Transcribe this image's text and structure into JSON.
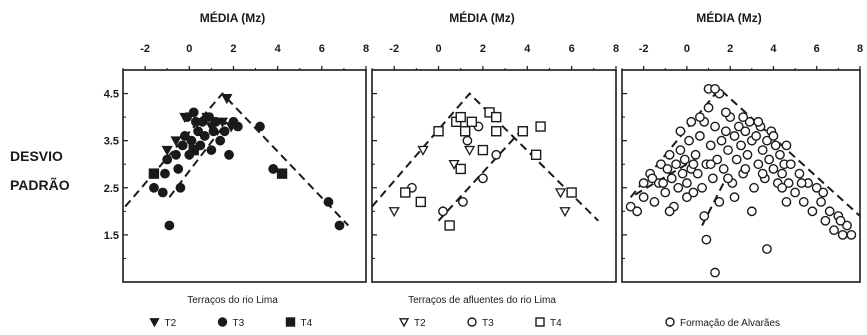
{
  "ylabel_lines": [
    "DESVIO",
    "PADRÃO"
  ],
  "chart_data": [
    {
      "type": "scatter",
      "panel": "left",
      "xlabel": "MÉDIA (Mz)",
      "xlim": [
        -3,
        8
      ],
      "xticks": [
        -2,
        0,
        2,
        4,
        6,
        8
      ],
      "ylim": [
        0.5,
        5.0
      ],
      "yticks": [
        1.5,
        2.5,
        3.5,
        4.5
      ],
      "ytick_labels": [
        "1.5",
        "2.5",
        "3.5",
        "4.5"
      ],
      "envelope": [
        [
          [
            -2.9,
            2.1
          ],
          [
            1.5,
            4.5
          ],
          [
            7.2,
            1.7
          ]
        ],
        [
          [
            -0.9,
            2.3
          ],
          [
            1.7,
            3.9
          ]
        ]
      ],
      "legend_title": "Terraços do rio Lima",
      "series": [
        {
          "name": "T2",
          "marker": "triangle-down",
          "filled": true,
          "points": [
            [
              -1.0,
              3.3
            ],
            [
              -0.6,
              3.5
            ],
            [
              -0.2,
              4.0
            ],
            [
              0.8,
              4.0
            ],
            [
              1.0,
              3.8
            ],
            [
              1.5,
              3.9
            ],
            [
              1.7,
              4.4
            ],
            [
              1.9,
              3.8
            ],
            [
              0.3,
              3.3
            ]
          ]
        },
        {
          "name": "T3",
          "marker": "circle",
          "filled": true,
          "points": [
            [
              -1.6,
              2.5
            ],
            [
              -1.2,
              2.4
            ],
            [
              -1.1,
              2.8
            ],
            [
              -1.0,
              3.1
            ],
            [
              -0.9,
              1.7
            ],
            [
              -0.6,
              3.2
            ],
            [
              -0.5,
              2.9
            ],
            [
              -0.4,
              2.5
            ],
            [
              -0.3,
              3.4
            ],
            [
              -0.2,
              3.6
            ],
            [
              -0.1,
              4.0
            ],
            [
              0.0,
              3.2
            ],
            [
              0.1,
              3.5
            ],
            [
              0.2,
              4.1
            ],
            [
              0.3,
              3.9
            ],
            [
              0.4,
              3.7
            ],
            [
              0.5,
              3.4
            ],
            [
              0.6,
              3.9
            ],
            [
              0.7,
              3.6
            ],
            [
              0.9,
              4.0
            ],
            [
              1.0,
              3.3
            ],
            [
              1.1,
              3.7
            ],
            [
              1.2,
              3.9
            ],
            [
              1.4,
              3.5
            ],
            [
              1.6,
              3.7
            ],
            [
              1.8,
              3.2
            ],
            [
              2.0,
              3.9
            ],
            [
              2.2,
              3.8
            ],
            [
              3.2,
              3.8
            ],
            [
              3.8,
              2.9
            ],
            [
              4.2,
              2.8
            ],
            [
              6.3,
              2.2
            ],
            [
              6.8,
              1.7
            ]
          ]
        },
        {
          "name": "T4",
          "marker": "square",
          "filled": true,
          "points": [
            [
              -1.6,
              2.8
            ],
            [
              0.2,
              3.3
            ],
            [
              4.2,
              2.8
            ]
          ]
        }
      ]
    },
    {
      "type": "scatter",
      "panel": "middle",
      "xlabel": "MÉDIA (Mz)",
      "xlim": [
        -3,
        8
      ],
      "xticks": [
        -2,
        0,
        2,
        4,
        6,
        8
      ],
      "ylim": [
        0.5,
        5.0
      ],
      "yticks": [
        1.5,
        2.5,
        3.5,
        4.5
      ],
      "envelope": [
        [
          [
            -3.0,
            2.1
          ],
          [
            1.4,
            4.5
          ],
          [
            7.2,
            1.8
          ]
        ],
        [
          [
            0.0,
            1.8
          ],
          [
            3.7,
            3.7
          ]
        ]
      ],
      "legend_title": "Terraços de afluentes do rio Lima",
      "series": [
        {
          "name": "T2",
          "marker": "triangle-down",
          "filled": false,
          "points": [
            [
              -2.0,
              2.0
            ],
            [
              -0.7,
              3.3
            ],
            [
              0.7,
              3.0
            ],
            [
              1.4,
              3.3
            ],
            [
              5.5,
              2.4
            ],
            [
              5.7,
              2.0
            ]
          ]
        },
        {
          "name": "T3",
          "marker": "circle",
          "filled": false,
          "points": [
            [
              -1.2,
              2.5
            ],
            [
              0.2,
              2.0
            ],
            [
              1.1,
              2.2
            ],
            [
              1.3,
              3.5
            ],
            [
              1.8,
              3.8
            ],
            [
              2.0,
              2.7
            ],
            [
              2.6,
              3.2
            ]
          ]
        },
        {
          "name": "T4",
          "marker": "square",
          "filled": false,
          "points": [
            [
              -1.5,
              2.4
            ],
            [
              -0.8,
              2.2
            ],
            [
              0.0,
              3.7
            ],
            [
              0.5,
              1.7
            ],
            [
              0.8,
              3.9
            ],
            [
              1.0,
              4.0
            ],
            [
              1.2,
              3.7
            ],
            [
              1.0,
              2.9
            ],
            [
              1.5,
              3.9
            ],
            [
              2.0,
              3.3
            ],
            [
              2.3,
              4.1
            ],
            [
              2.6,
              4.0
            ],
            [
              2.6,
              3.7
            ],
            [
              3.8,
              3.7
            ],
            [
              4.4,
              3.2
            ],
            [
              4.6,
              3.8
            ],
            [
              6.0,
              2.4
            ]
          ]
        }
      ]
    },
    {
      "type": "scatter",
      "panel": "right",
      "xlabel": "MÉDIA (Mz)",
      "xlim": [
        -3,
        8
      ],
      "xticks": [
        -2,
        0,
        2,
        4,
        6,
        8
      ],
      "ylim": [
        0.5,
        5.0
      ],
      "yticks": [
        1.5,
        2.5,
        3.5,
        4.5
      ],
      "envelope": [
        [
          [
            -2.6,
            2.3
          ],
          [
            1.5,
            4.6
          ],
          [
            8.0,
            1.9
          ]
        ],
        [
          [
            0.0,
            3.0
          ],
          [
            -2.6,
            2.3
          ]
        ],
        [
          [
            0.7,
            1.7
          ],
          [
            1.8,
            2.7
          ]
        ]
      ],
      "legend_title": "",
      "series": [
        {
          "name": "Formação de Alvarães",
          "marker": "circle",
          "filled": false,
          "points": [
            [
              -2.6,
              2.1
            ],
            [
              -2.3,
              2.0
            ],
            [
              -2.0,
              2.6
            ],
            [
              -1.7,
              2.8
            ],
            [
              -1.5,
              2.2
            ],
            [
              -1.3,
              2.6
            ],
            [
              -1.2,
              3.0
            ],
            [
              -1.0,
              2.4
            ],
            [
              -0.9,
              2.9
            ],
            [
              -0.8,
              3.2
            ],
            [
              -0.7,
              2.7
            ],
            [
              -0.6,
              2.1
            ],
            [
              -0.5,
              3.0
            ],
            [
              -0.4,
              2.5
            ],
            [
              -0.3,
              3.3
            ],
            [
              -0.2,
              2.8
            ],
            [
              -0.1,
              3.1
            ],
            [
              0.0,
              2.6
            ],
            [
              0.1,
              3.5
            ],
            [
              0.2,
              2.9
            ],
            [
              0.3,
              2.4
            ],
            [
              0.4,
              3.2
            ],
            [
              0.5,
              2.8
            ],
            [
              0.6,
              3.6
            ],
            [
              0.7,
              2.5
            ],
            [
              0.8,
              3.9
            ],
            [
              0.9,
              3.0
            ],
            [
              1.0,
              4.2
            ],
            [
              1.1,
              3.4
            ],
            [
              1.2,
              2.7
            ],
            [
              1.3,
              3.8
            ],
            [
              1.4,
              3.1
            ],
            [
              1.5,
              4.5
            ],
            [
              1.6,
              3.5
            ],
            [
              1.7,
              2.9
            ],
            [
              1.8,
              3.7
            ],
            [
              1.9,
              3.3
            ],
            [
              2.0,
              4.0
            ],
            [
              2.1,
              2.6
            ],
            [
              2.2,
              3.6
            ],
            [
              2.3,
              3.1
            ],
            [
              2.4,
              3.8
            ],
            [
              2.5,
              3.4
            ],
            [
              2.6,
              2.8
            ],
            [
              2.7,
              3.7
            ],
            [
              2.8,
              3.2
            ],
            [
              2.9,
              3.9
            ],
            [
              3.0,
              3.5
            ],
            [
              3.1,
              2.5
            ],
            [
              3.2,
              3.6
            ],
            [
              3.3,
              3.0
            ],
            [
              3.4,
              3.8
            ],
            [
              3.5,
              3.3
            ],
            [
              3.6,
              2.7
            ],
            [
              3.7,
              3.5
            ],
            [
              3.8,
              3.1
            ],
            [
              3.9,
              3.7
            ],
            [
              4.0,
              2.9
            ],
            [
              4.1,
              3.4
            ],
            [
              4.2,
              2.6
            ],
            [
              4.3,
              3.2
            ],
            [
              4.4,
              2.8
            ],
            [
              4.5,
              3.0
            ],
            [
              4.7,
              2.6
            ],
            [
              4.8,
              3.0
            ],
            [
              5.0,
              2.4
            ],
            [
              5.2,
              2.8
            ],
            [
              5.4,
              2.2
            ],
            [
              5.6,
              2.6
            ],
            [
              5.8,
              2.0
            ],
            [
              6.0,
              2.5
            ],
            [
              6.2,
              2.2
            ],
            [
              6.4,
              1.8
            ],
            [
              6.6,
              2.0
            ],
            [
              6.8,
              1.6
            ],
            [
              7.0,
              1.9
            ],
            [
              7.2,
              1.5
            ],
            [
              7.4,
              1.7
            ],
            [
              7.6,
              1.5
            ],
            [
              1.0,
              4.6
            ],
            [
              1.3,
              4.6
            ],
            [
              0.2,
              3.9
            ],
            [
              -0.3,
              3.7
            ],
            [
              0.6,
              4.0
            ],
            [
              1.8,
              4.1
            ],
            [
              2.6,
              4.0
            ],
            [
              3.3,
              3.9
            ],
            [
              4.0,
              3.6
            ],
            [
              4.6,
              3.4
            ],
            [
              -1.6,
              2.7
            ],
            [
              -0.8,
              2.0
            ],
            [
              0.0,
              2.3
            ],
            [
              0.8,
              1.9
            ],
            [
              1.5,
              2.2
            ],
            [
              2.2,
              2.3
            ],
            [
              3.0,
              2.0
            ],
            [
              4.6,
              2.2
            ],
            [
              5.3,
              2.6
            ],
            [
              6.3,
              2.4
            ],
            [
              7.1,
              1.8
            ],
            [
              0.9,
              1.4
            ],
            [
              3.7,
              1.2
            ],
            [
              1.3,
              0.7
            ],
            [
              -2.0,
              2.3
            ],
            [
              -1.1,
              2.6
            ],
            [
              0.3,
              3.0
            ],
            [
              1.1,
              3.0
            ],
            [
              1.9,
              2.7
            ],
            [
              2.7,
              2.9
            ],
            [
              3.5,
              2.8
            ],
            [
              4.4,
              2.5
            ]
          ]
        }
      ]
    }
  ]
}
